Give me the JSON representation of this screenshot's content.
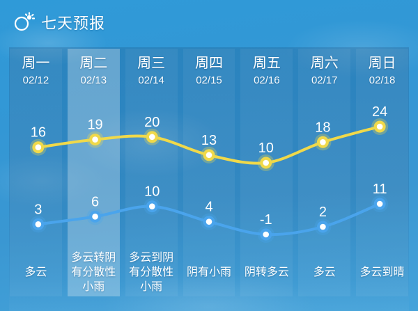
{
  "header": {
    "title": "七天预报",
    "icon": "sun-behind-cloud-icon"
  },
  "highlighted_day_index": 1,
  "colors": {
    "background_blue": "#3397d5",
    "high_line": "#f0d94a",
    "low_line": "#4aa4ec",
    "marker_center": "#ffffff",
    "text": "#ffffff"
  },
  "days": [
    {
      "name": "周一",
      "date": "02/12",
      "condition": "多云"
    },
    {
      "name": "周二",
      "date": "02/13",
      "condition": "多云转阴有分散性小雨"
    },
    {
      "name": "周三",
      "date": "02/14",
      "condition": "多云到阴有分散性小雨"
    },
    {
      "name": "周四",
      "date": "02/15",
      "condition": "阴有小雨"
    },
    {
      "name": "周五",
      "date": "02/16",
      "condition": "阴转多云"
    },
    {
      "name": "周六",
      "date": "02/17",
      "condition": "多云"
    },
    {
      "name": "周日",
      "date": "02/18",
      "condition": "多云到晴"
    }
  ],
  "chart_data": {
    "type": "line",
    "categories": [
      "02/12",
      "02/13",
      "02/14",
      "02/15",
      "02/16",
      "02/17",
      "02/18"
    ],
    "series": [
      {
        "name": "high",
        "color": "#f0d94a",
        "values": [
          16,
          19,
          20,
          13,
          10,
          18,
          24
        ]
      },
      {
        "name": "low",
        "color": "#4aa4ec",
        "values": [
          3,
          6,
          10,
          4,
          -1,
          2,
          11
        ]
      }
    ],
    "title": "七天预报",
    "xlabel": "",
    "ylabel": "",
    "grid": false,
    "legend": "none",
    "point_labels": true
  }
}
